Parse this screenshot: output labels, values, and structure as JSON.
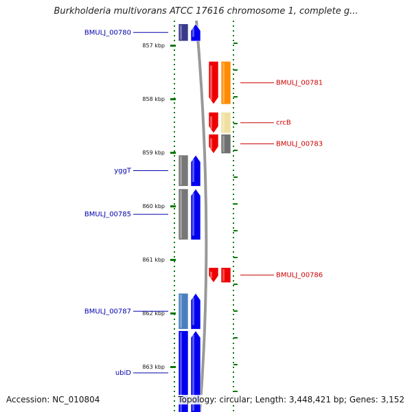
{
  "title": "Burkholderia multivorans ATCC 17616 chromosome 1, complete g...",
  "accession": "Accession: NC_010804",
  "topology": "Topology: circular; Length: 3,448,421 bp; Genes: 3,152",
  "ruler": [
    {
      "label": "857 kbp",
      "kbp": 857
    },
    {
      "label": "858 kbp",
      "kbp": 858
    },
    {
      "label": "859 kbp",
      "kbp": 859
    },
    {
      "label": "860 kbp",
      "kbp": 860
    },
    {
      "label": "861 kbp",
      "kbp": 861
    },
    {
      "label": "862 kbp",
      "kbp": 862
    },
    {
      "label": "863 kbp",
      "kbp": 863
    }
  ],
  "colors": {
    "forward_strand": "#0000ee",
    "reverse_strand": "#ee0000",
    "forward_label": "#0000aa",
    "reverse_label": "#cc0000",
    "backbone": "#999999",
    "tick": "#007700"
  },
  "genes": [
    {
      "name": "BMULJ_00780",
      "strand": "forward",
      "start": 856.6,
      "end": 856.92,
      "cog_color": "#3a3a8c"
    },
    {
      "name": "BMULJ_00781",
      "strand": "reverse",
      "start": 857.3,
      "end": 858.1,
      "cog_color": "#ff8c00"
    },
    {
      "name": "crcB",
      "strand": "reverse",
      "start": 858.25,
      "end": 858.64,
      "cog_color": "#f0e0a0"
    },
    {
      "name": "BMULJ_00783",
      "strand": "reverse",
      "start": 858.66,
      "end": 859.02,
      "cog_color": "#707070"
    },
    {
      "name": "yggT",
      "strand": "forward",
      "start": 859.05,
      "end": 859.63,
      "cog_color": "#777777"
    },
    {
      "name": "BMULJ_00785",
      "strand": "forward",
      "start": 859.68,
      "end": 860.63,
      "cog_color": "#777777"
    },
    {
      "name": "BMULJ_00786",
      "strand": "reverse",
      "start": 861.15,
      "end": 861.43,
      "cog_color": "#ee0000"
    },
    {
      "name": "BMULJ_00787",
      "strand": "forward",
      "start": 861.63,
      "end": 862.3,
      "cog_color": "#4a7fbf"
    },
    {
      "name": "ubiD",
      "strand": "forward",
      "start": 862.33,
      "end": 863.9,
      "cog_color": "#0000ee"
    }
  ]
}
